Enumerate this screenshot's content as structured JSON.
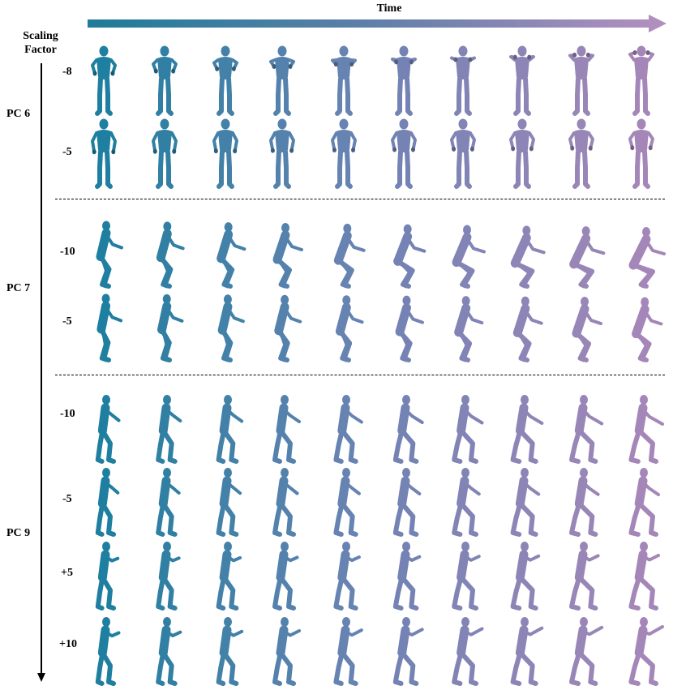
{
  "header": {
    "time_label": "Time",
    "scaling_label_line1": "Scaling",
    "scaling_label_line2": "Factor"
  },
  "gradient": {
    "start": "#1f7c98",
    "mid": "#5e7fa8",
    "end": "#b08fbf"
  },
  "groups": [
    {
      "label": "PC 6",
      "pose": "front",
      "rows": [
        {
          "factor": "-8",
          "arms_raise": 1.0
        },
        {
          "factor": "-5",
          "arms_raise": 0.2
        }
      ]
    },
    {
      "label": "PC 7",
      "pose": "side_squat",
      "rows": [
        {
          "factor": "-10",
          "squat": 1.0
        },
        {
          "factor": "-5",
          "squat": 0.55
        }
      ]
    },
    {
      "label": "PC 9",
      "pose": "side_reach",
      "rows": [
        {
          "factor": "-10",
          "reach": -1.0
        },
        {
          "factor": "-5",
          "reach": -0.5
        },
        {
          "factor": "+5",
          "reach": 0.5
        },
        {
          "factor": "+10",
          "reach": 1.0
        }
      ]
    }
  ],
  "frames_per_row": 10
}
